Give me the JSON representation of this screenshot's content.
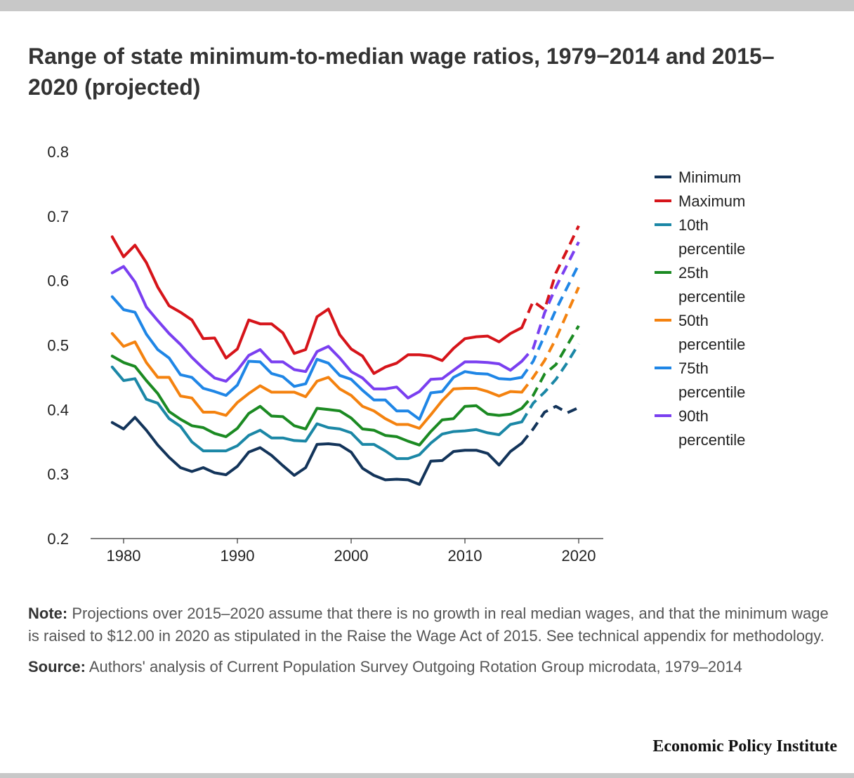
{
  "title": "Range of state minimum-to-median wage ratios, 1979−2014 and 2015–2020 (projected)",
  "note_label": "Note:",
  "note_text": "Projections over 2015–2020 assume that there is no growth in real median wages, and that the minimum wage is raised to $12.00 in 2020 as stipulated in the Raise the Wage Act of 2015. See technical appendix for methodology.",
  "source_label": "Source:",
  "source_text": "Authors' analysis of Current Population Survey Outgoing Rotation Group microdata, 1979–2014",
  "brand": "Economic Policy Institute",
  "chart_data": {
    "type": "line",
    "xlim": [
      1978,
      2022
    ],
    "ylim": [
      0.2,
      0.8
    ],
    "x_ticks": [
      1980,
      1990,
      2000,
      2010,
      2020
    ],
    "y_ticks": [
      "0.2",
      "0.3",
      "0.4",
      "0.5",
      "0.6",
      "0.7",
      "0.8"
    ],
    "grid": false,
    "legend_position": "right",
    "projection_start_year": 2015,
    "x": [
      1979,
      1980,
      1981,
      1982,
      1983,
      1984,
      1985,
      1986,
      1987,
      1988,
      1989,
      1990,
      1991,
      1992,
      1993,
      1994,
      1995,
      1996,
      1997,
      1998,
      1999,
      2000,
      2001,
      2002,
      2003,
      2004,
      2005,
      2006,
      2007,
      2008,
      2009,
      2010,
      2011,
      2012,
      2013,
      2014,
      2015,
      2016,
      2017,
      2018,
      2019,
      2020
    ],
    "series": [
      {
        "name": "Minimum",
        "color": "#13345a",
        "values": [
          0.38,
          0.37,
          0.388,
          0.368,
          0.345,
          0.326,
          0.31,
          0.304,
          0.31,
          0.302,
          0.299,
          0.312,
          0.334,
          0.341,
          0.329,
          0.313,
          0.298,
          0.31,
          0.346,
          0.347,
          0.345,
          0.334,
          0.309,
          0.298,
          0.291,
          0.292,
          0.291,
          0.284,
          0.32,
          0.321,
          0.335,
          0.337,
          0.337,
          0.332,
          0.314,
          0.335,
          0.348,
          0.37,
          0.396,
          0.405,
          0.395,
          0.403
        ]
      },
      {
        "name": "Maximum",
        "color": "#d6141a",
        "values": [
          0.668,
          0.637,
          0.655,
          0.628,
          0.59,
          0.561,
          0.551,
          0.539,
          0.51,
          0.511,
          0.48,
          0.494,
          0.539,
          0.533,
          0.533,
          0.519,
          0.487,
          0.493,
          0.544,
          0.556,
          0.516,
          0.494,
          0.483,
          0.456,
          0.466,
          0.472,
          0.485,
          0.485,
          0.483,
          0.476,
          0.495,
          0.51,
          0.513,
          0.514,
          0.505,
          0.518,
          0.527,
          0.568,
          0.555,
          0.612,
          0.648,
          0.685
        ]
      },
      {
        "name": "10th percentile",
        "color": "#1b87a6",
        "values": [
          0.466,
          0.445,
          0.448,
          0.416,
          0.41,
          0.386,
          0.374,
          0.35,
          0.336,
          0.336,
          0.336,
          0.344,
          0.36,
          0.368,
          0.356,
          0.356,
          0.352,
          0.351,
          0.378,
          0.372,
          0.37,
          0.364,
          0.346,
          0.346,
          0.336,
          0.324,
          0.324,
          0.33,
          0.348,
          0.362,
          0.366,
          0.367,
          0.369,
          0.364,
          0.361,
          0.377,
          0.381,
          0.41,
          0.427,
          0.447,
          0.473,
          0.502
        ]
      },
      {
        "name": "25th percentile",
        "color": "#1b8a22",
        "values": [
          0.483,
          0.473,
          0.467,
          0.445,
          0.425,
          0.397,
          0.385,
          0.375,
          0.372,
          0.363,
          0.358,
          0.371,
          0.394,
          0.405,
          0.39,
          0.389,
          0.375,
          0.37,
          0.402,
          0.4,
          0.398,
          0.387,
          0.37,
          0.368,
          0.36,
          0.358,
          0.351,
          0.345,
          0.366,
          0.384,
          0.386,
          0.405,
          0.406,
          0.393,
          0.391,
          0.393,
          0.402,
          0.422,
          0.455,
          0.47,
          0.5,
          0.53
        ]
      },
      {
        "name": "50th percentile",
        "color": "#f4820f",
        "values": [
          0.518,
          0.498,
          0.505,
          0.473,
          0.45,
          0.45,
          0.421,
          0.418,
          0.396,
          0.396,
          0.391,
          0.411,
          0.425,
          0.437,
          0.427,
          0.427,
          0.427,
          0.42,
          0.444,
          0.45,
          0.432,
          0.422,
          0.405,
          0.398,
          0.386,
          0.377,
          0.377,
          0.371,
          0.392,
          0.414,
          0.432,
          0.433,
          0.433,
          0.428,
          0.421,
          0.428,
          0.427,
          0.45,
          0.476,
          0.51,
          0.55,
          0.59
        ]
      },
      {
        "name": "75th percentile",
        "color": "#1f86e6",
        "values": [
          0.575,
          0.555,
          0.551,
          0.517,
          0.493,
          0.48,
          0.454,
          0.45,
          0.433,
          0.428,
          0.422,
          0.438,
          0.475,
          0.474,
          0.456,
          0.451,
          0.436,
          0.44,
          0.478,
          0.472,
          0.453,
          0.447,
          0.43,
          0.415,
          0.415,
          0.398,
          0.398,
          0.385,
          0.426,
          0.428,
          0.45,
          0.459,
          0.456,
          0.455,
          0.448,
          0.447,
          0.45,
          0.475,
          0.515,
          0.555,
          0.59,
          0.625
        ]
      },
      {
        "name": "90th percentile",
        "color": "#7a3ff0",
        "values": [
          0.612,
          0.622,
          0.598,
          0.559,
          0.538,
          0.518,
          0.501,
          0.481,
          0.464,
          0.449,
          0.444,
          0.461,
          0.484,
          0.493,
          0.474,
          0.474,
          0.462,
          0.459,
          0.49,
          0.498,
          0.48,
          0.459,
          0.449,
          0.432,
          0.432,
          0.435,
          0.418,
          0.428,
          0.447,
          0.448,
          0.461,
          0.474,
          0.474,
          0.473,
          0.471,
          0.461,
          0.475,
          0.495,
          0.55,
          0.59,
          0.625,
          0.66
        ]
      }
    ]
  }
}
